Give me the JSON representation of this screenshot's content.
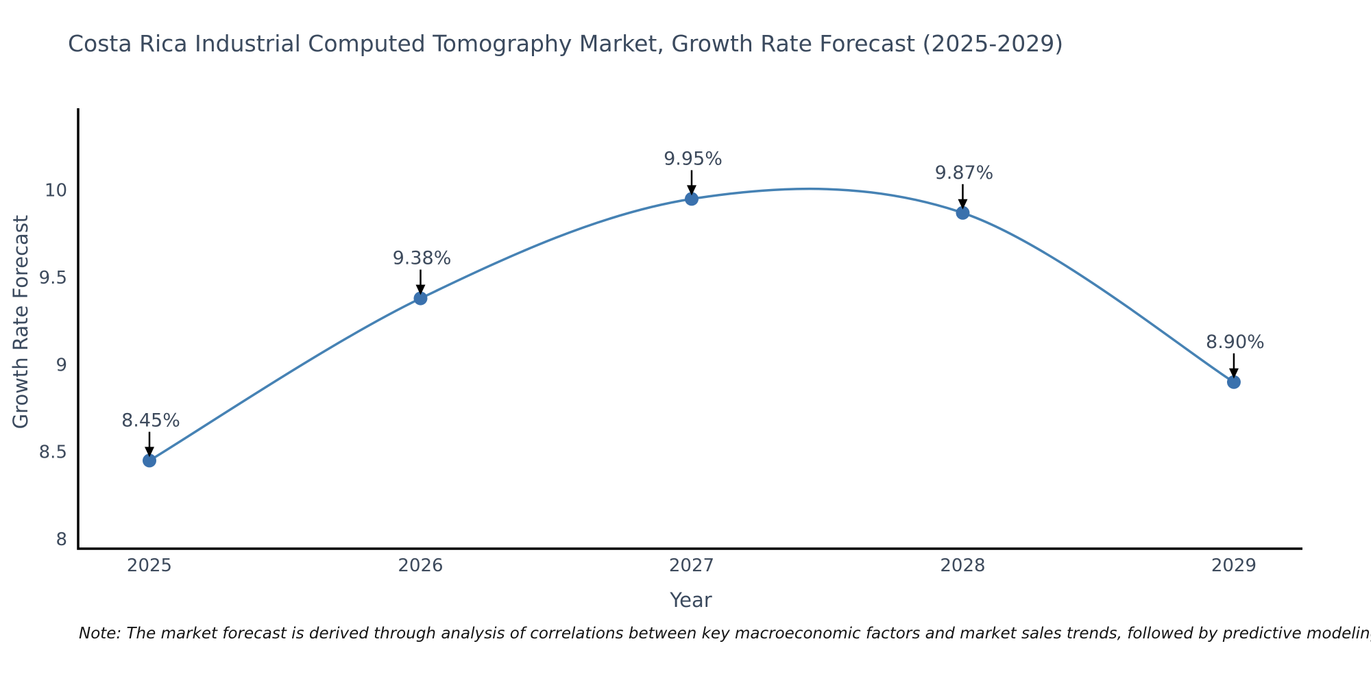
{
  "note": "Note: The market forecast is derived through analysis of correlations between key macroeconomic factors and market sales trends, followed by predictive modeling to project future sales",
  "chart_data": {
    "type": "line",
    "title": "Costa Rica Industrial Computed Tomography Market, Growth Rate Forecast (2025-2029)",
    "xlabel": "Year",
    "ylabel": "Growth Rate Forecast",
    "x": [
      2025,
      2026,
      2027,
      2028,
      2029
    ],
    "values": [
      8.45,
      9.38,
      9.95,
      9.87,
      8.9
    ],
    "point_labels": [
      "8.45%",
      "9.38%",
      "9.95%",
      "9.87%",
      "8.90%"
    ],
    "series_name": "Growth Rate Forecast",
    "curve": "spline",
    "grid": false,
    "legend": "none",
    "xtick_labels": [
      "2025",
      "2026",
      "2027",
      "2028",
      "2029"
    ],
    "yticks": [
      8,
      8.5,
      9,
      9.5,
      10
    ],
    "ytick_labels": [
      "8",
      "8.5",
      "9",
      "9.5",
      "10"
    ],
    "xlim": [
      2024.737,
      2029.253
    ],
    "ylim": [
      7.945,
      10.47
    ],
    "colors": {
      "line": "#4682b4",
      "marker": "#3a71ad",
      "axis": "#000000",
      "text": "#3d4a5c",
      "annotation_arrow": "#000000"
    }
  }
}
